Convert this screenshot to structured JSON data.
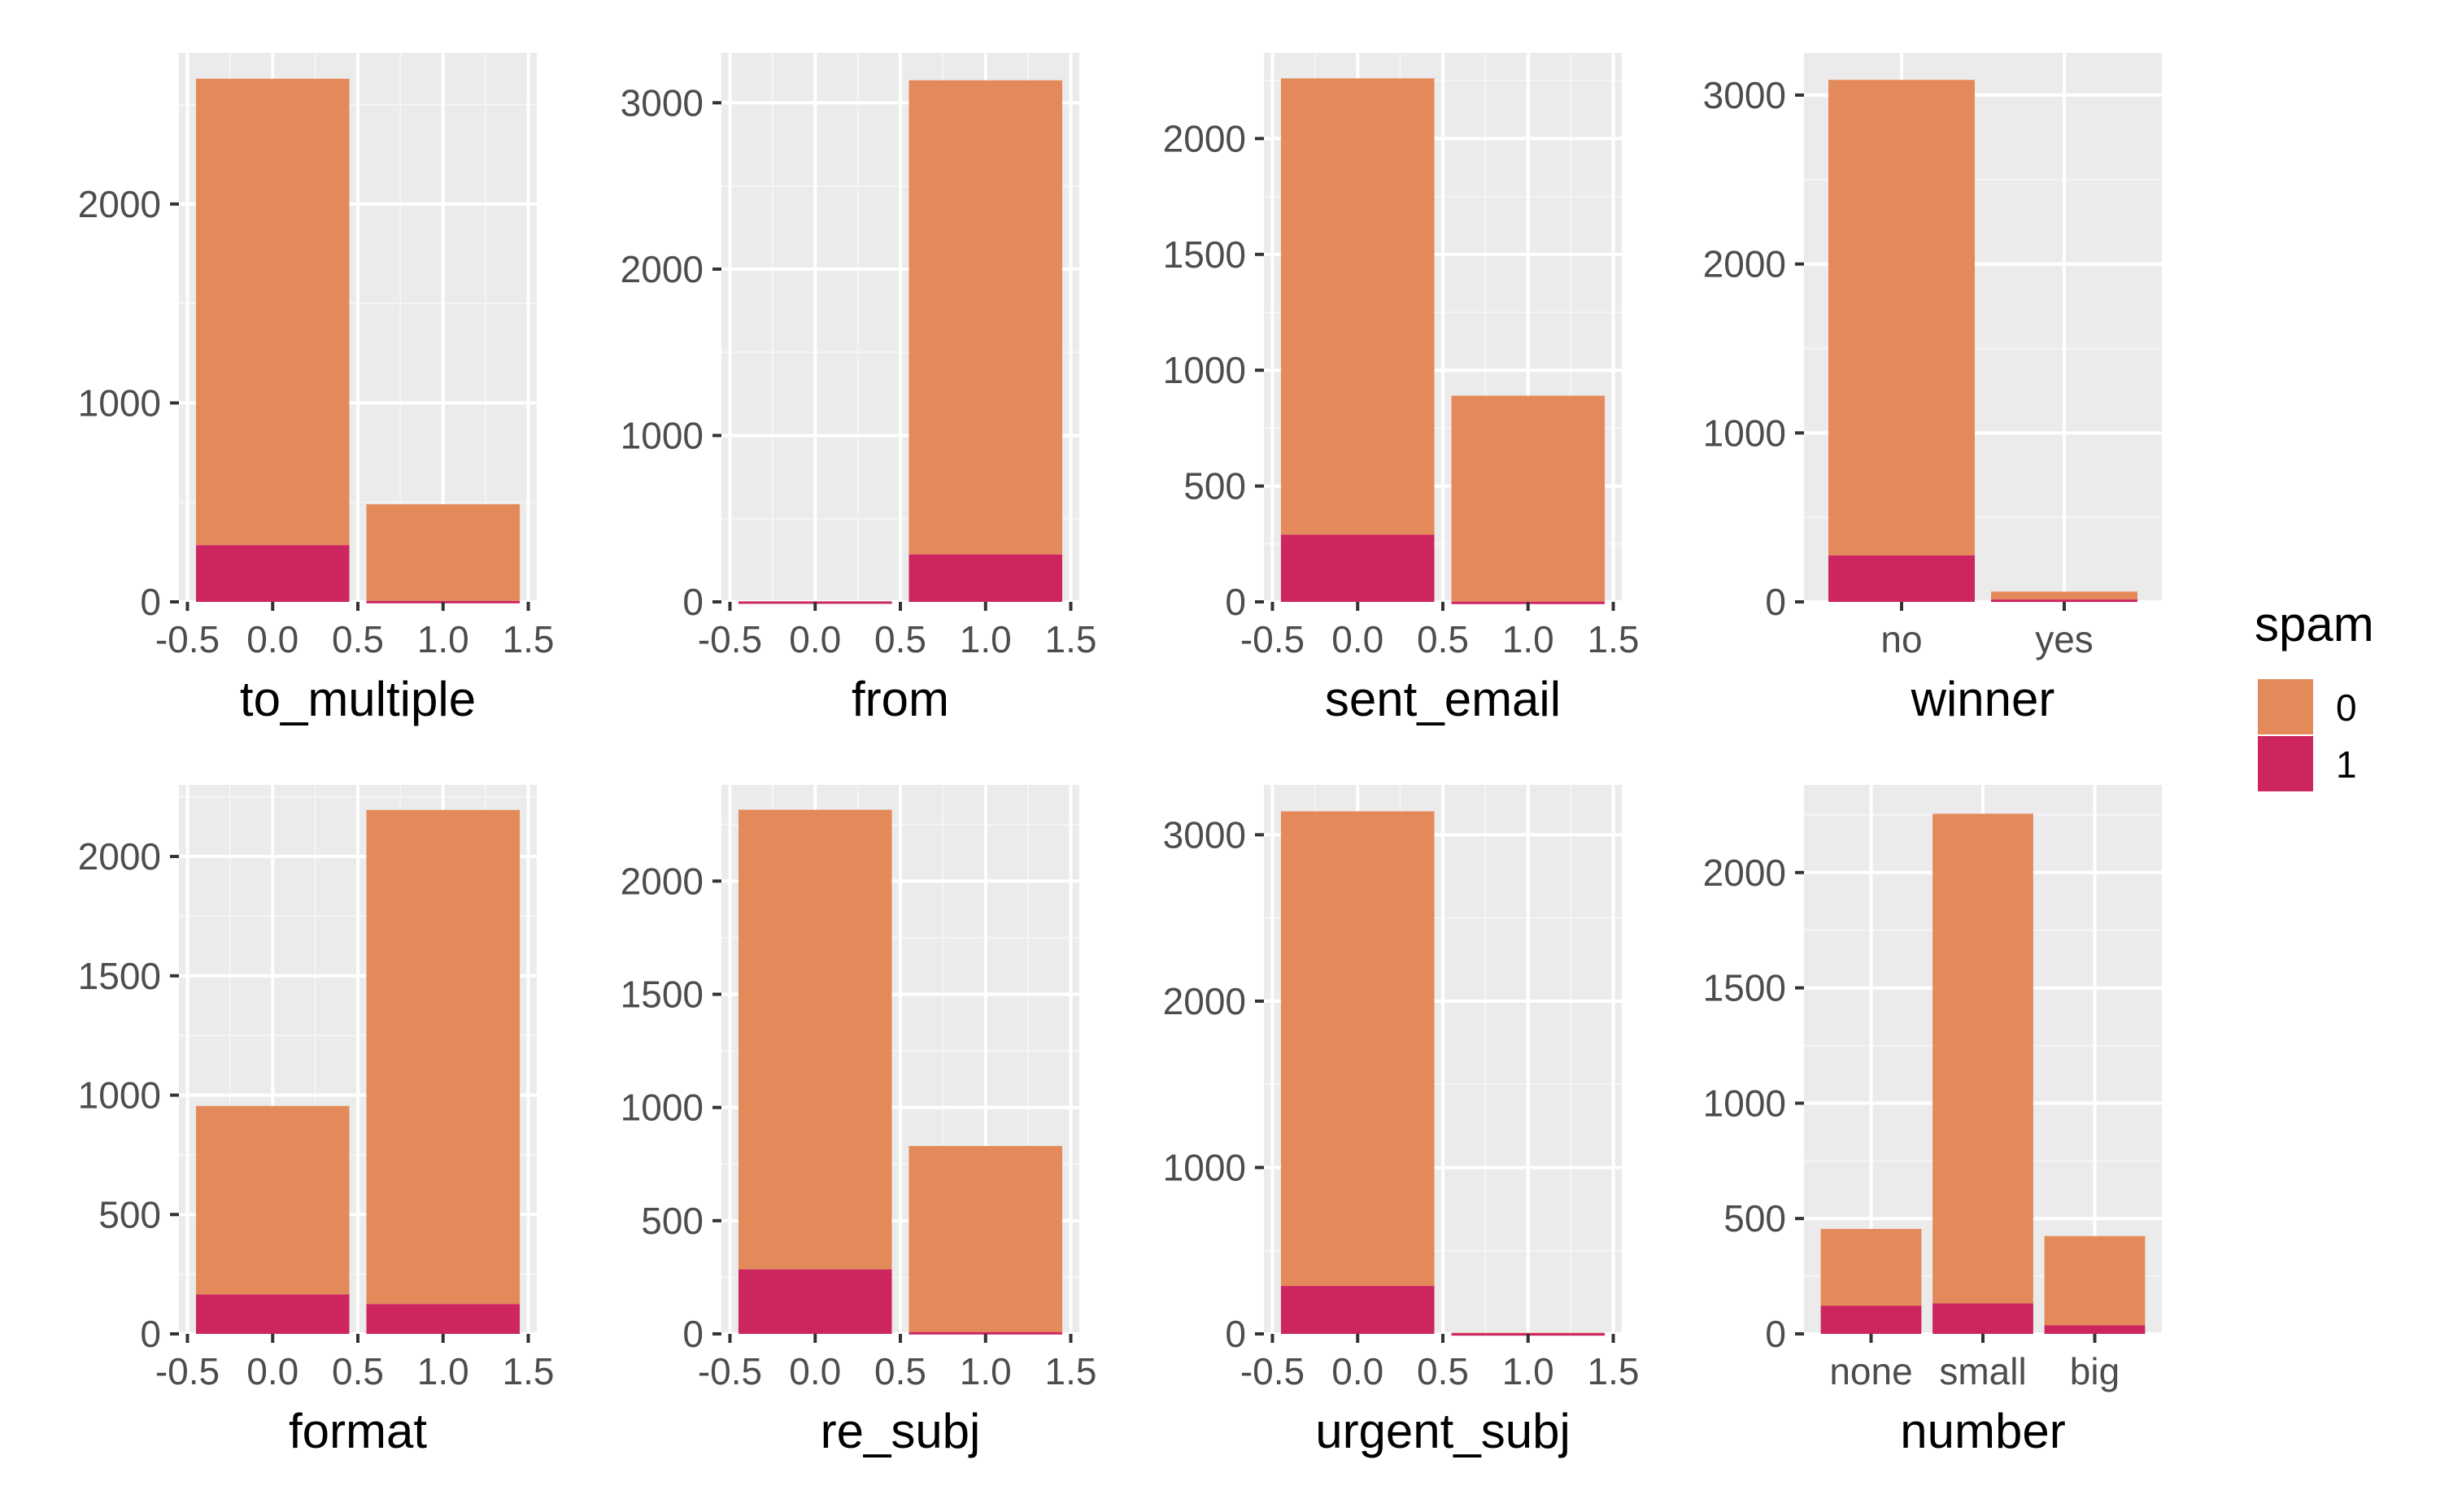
{
  "colors": {
    "panel_background": "#EBEBEB",
    "grid_major": "#FFFFFF",
    "grid_minor": "#F5F5F5",
    "spam_0": "#E48A5A",
    "spam_1": "#CC2560",
    "tick_text": "#4D4D4D",
    "title_text": "#000000"
  },
  "legend": {
    "title": "spam",
    "entries": [
      {
        "label": "0",
        "color_key": "spam_0"
      },
      {
        "label": "1",
        "color_key": "spam_1"
      }
    ]
  },
  "chart_data": [
    {
      "type": "bar",
      "stacked": true,
      "xlabel": "to_multiple",
      "x_scale": "numeric",
      "xlim": [
        -0.55,
        1.55
      ],
      "x_ticks": [
        -0.5,
        0.0,
        0.5,
        1.0,
        1.5
      ],
      "x_tick_labels": [
        "-0.5",
        "0.0",
        "0.5",
        "1.0",
        "1.5"
      ],
      "ylim": [
        0,
        2760
      ],
      "y_ticks": [
        0,
        1000,
        2000
      ],
      "y_tick_labels": [
        "0",
        "1000",
        "2000"
      ],
      "x": [
        0,
        1
      ],
      "series": [
        {
          "name": "1",
          "values": [
            285,
            5
          ]
        },
        {
          "name": "0",
          "values": [
            2345,
            486
          ]
        }
      ]
    },
    {
      "type": "bar",
      "stacked": true,
      "xlabel": "from",
      "x_scale": "numeric",
      "xlim": [
        -0.55,
        1.55
      ],
      "x_ticks": [
        -0.5,
        0.0,
        0.5,
        1.0,
        1.5
      ],
      "x_tick_labels": [
        "-0.5",
        "0.0",
        "0.5",
        "1.0",
        "1.5"
      ],
      "ylim": [
        0,
        3300
      ],
      "y_ticks": [
        0,
        1000,
        2000,
        3000
      ],
      "y_tick_labels": [
        "0",
        "1000",
        "2000",
        "3000"
      ],
      "x": [
        0,
        1
      ],
      "series": [
        {
          "name": "1",
          "values": [
            3,
            285
          ]
        },
        {
          "name": "0",
          "values": [
            0,
            2850
          ]
        }
      ]
    },
    {
      "type": "bar",
      "stacked": true,
      "xlabel": "sent_email",
      "x_scale": "numeric",
      "xlim": [
        -0.55,
        1.55
      ],
      "x_ticks": [
        -0.5,
        0.0,
        0.5,
        1.0,
        1.5
      ],
      "x_tick_labels": [
        "-0.5",
        "0.0",
        "0.5",
        "1.0",
        "1.5"
      ],
      "ylim": [
        0,
        2370
      ],
      "y_ticks": [
        0,
        500,
        1000,
        1500,
        2000
      ],
      "y_tick_labels": [
        "0",
        "500",
        "1000",
        "1500",
        "2000"
      ],
      "x": [
        0,
        1
      ],
      "series": [
        {
          "name": "1",
          "values": [
            290,
            1
          ]
        },
        {
          "name": "0",
          "values": [
            1970,
            889
          ]
        }
      ]
    },
    {
      "type": "bar",
      "stacked": true,
      "xlabel": "winner",
      "x_scale": "categorical",
      "categories": [
        "no",
        "yes"
      ],
      "ylim": [
        0,
        3250
      ],
      "y_ticks": [
        0,
        1000,
        2000,
        3000
      ],
      "y_tick_labels": [
        "0",
        "1000",
        "2000",
        "3000"
      ],
      "series": [
        {
          "name": "1",
          "values": [
            275,
            14
          ]
        },
        {
          "name": "0",
          "values": [
            2815,
            47
          ]
        }
      ]
    },
    {
      "type": "bar",
      "stacked": true,
      "xlabel": "format",
      "x_scale": "numeric",
      "xlim": [
        -0.55,
        1.55
      ],
      "x_ticks": [
        -0.5,
        0.0,
        0.5,
        1.0,
        1.5
      ],
      "x_tick_labels": [
        "-0.5",
        "0.0",
        "0.5",
        "1.0",
        "1.5"
      ],
      "ylim": [
        0,
        2300
      ],
      "y_ticks": [
        0,
        500,
        1000,
        1500,
        2000
      ],
      "y_tick_labels": [
        "0",
        "500",
        "1000",
        "1500",
        "2000"
      ],
      "x": [
        0,
        1
      ],
      "series": [
        {
          "name": "1",
          "values": [
            165,
            125
          ]
        },
        {
          "name": "0",
          "values": [
            790,
            2070
          ]
        }
      ]
    },
    {
      "type": "bar",
      "stacked": true,
      "xlabel": "re_subj",
      "x_scale": "numeric",
      "xlim": [
        -0.55,
        1.55
      ],
      "x_ticks": [
        -0.5,
        0.0,
        0.5,
        1.0,
        1.5
      ],
      "x_tick_labels": [
        "-0.5",
        "0.0",
        "0.5",
        "1.0",
        "1.5"
      ],
      "ylim": [
        0,
        2425
      ],
      "y_ticks": [
        0,
        500,
        1000,
        1500,
        2000
      ],
      "y_tick_labels": [
        "0",
        "500",
        "1000",
        "1500",
        "2000"
      ],
      "x": [
        0,
        1
      ],
      "series": [
        {
          "name": "1",
          "values": [
            285,
            8
          ]
        },
        {
          "name": "0",
          "values": [
            2030,
            822
          ]
        }
      ]
    },
    {
      "type": "bar",
      "stacked": true,
      "xlabel": "urgent_subj",
      "x_scale": "numeric",
      "xlim": [
        -0.55,
        1.55
      ],
      "x_ticks": [
        -0.5,
        0.0,
        0.5,
        1.0,
        1.5
      ],
      "x_tick_labels": [
        "-0.5",
        "0.0",
        "0.5",
        "1.0",
        "1.5"
      ],
      "ylim": [
        0,
        3300
      ],
      "y_ticks": [
        0,
        1000,
        2000,
        3000
      ],
      "y_tick_labels": [
        "0",
        "1000",
        "2000",
        "3000"
      ],
      "x": [
        0,
        1
      ],
      "series": [
        {
          "name": "1",
          "values": [
            288,
            4
          ]
        },
        {
          "name": "0",
          "values": [
            2853,
            3
          ]
        }
      ]
    },
    {
      "type": "bar",
      "stacked": true,
      "xlabel": "number",
      "x_scale": "categorical",
      "categories": [
        "none",
        "small",
        "big"
      ],
      "ylim": [
        0,
        2380
      ],
      "y_ticks": [
        0,
        500,
        1000,
        1500,
        2000
      ],
      "y_tick_labels": [
        "0",
        "500",
        "1000",
        "1500",
        "2000"
      ],
      "series": [
        {
          "name": "1",
          "values": [
            122,
            132,
            37
          ]
        },
        {
          "name": "0",
          "values": [
            333,
            2123,
            387
          ]
        }
      ]
    }
  ]
}
